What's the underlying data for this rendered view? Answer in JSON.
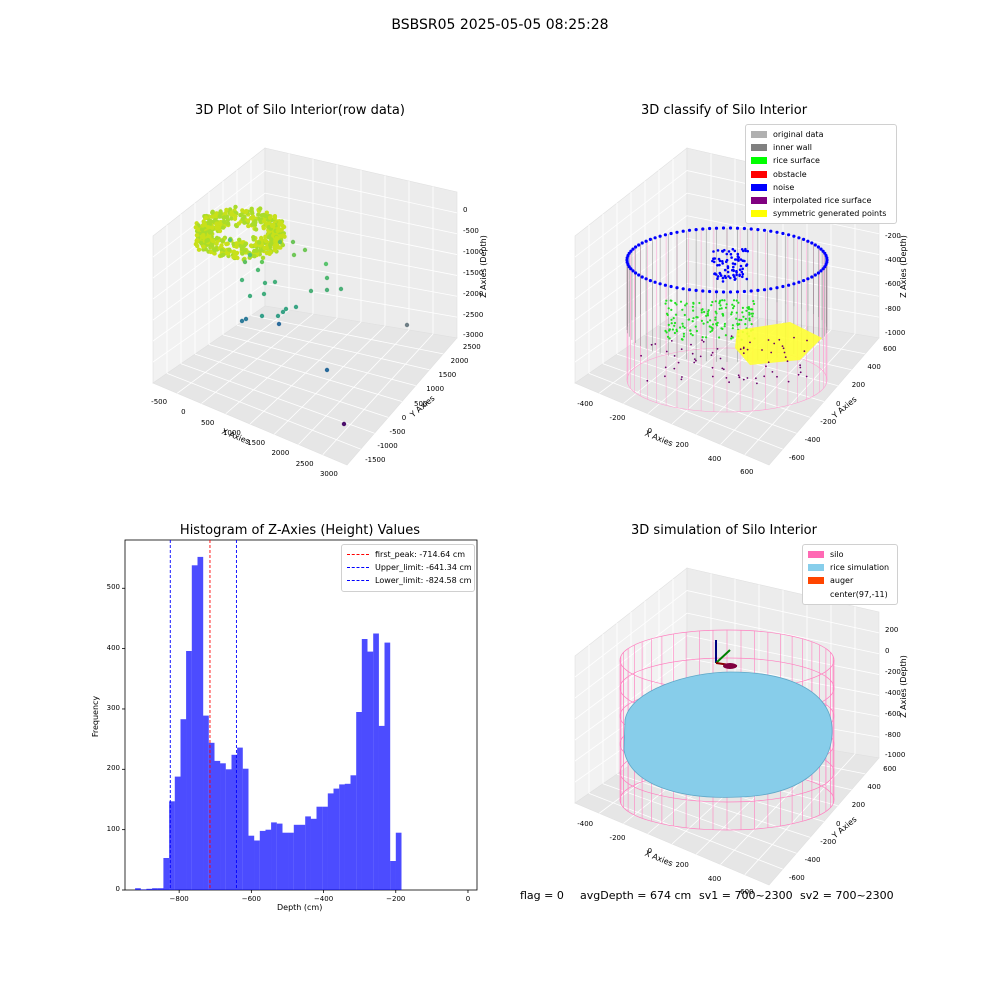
{
  "figure": {
    "suptitle": "BSBSR05 2025-05-05 08:25:28",
    "footer": {
      "flag": "flag = 0",
      "avg_depth": "avgDepth = 674 cm",
      "sv1": "sv1 = 700~2300",
      "sv2": "sv2 = 700~2300"
    }
  },
  "panels": {
    "raw": {
      "title": "3D Plot of Silo Interior(row data)",
      "xlabel": "X Axies",
      "ylabel": "Y Axies",
      "zlabel": "Z Axies (Depth)",
      "xticks": [
        "-500",
        "0",
        "500",
        "1000",
        "1500",
        "2000",
        "2500",
        "3000"
      ],
      "yticks": [
        "2500",
        "2000",
        "1500",
        "1000",
        "500",
        "0",
        "-500",
        "-1000",
        "-1500"
      ],
      "zticks": [
        "0",
        "-500",
        "-1000",
        "-1500",
        "-2000",
        "-2500",
        "-3000"
      ]
    },
    "classify": {
      "title": "3D classify of Silo Interior",
      "xlabel": "X Axies",
      "ylabel": "Y Axies",
      "zlabel": "Z Axies (Depth)",
      "xticks": [
        "-400",
        "-200",
        "0",
        "200",
        "400",
        "600"
      ],
      "yticks": [
        "600",
        "400",
        "200",
        "0",
        "-200",
        "-400",
        "-600"
      ],
      "zticks": [
        "0",
        "-200",
        "-400",
        "-600",
        "-800",
        "-1000"
      ],
      "legend": [
        {
          "label": "original data",
          "color": "#b0b0b0"
        },
        {
          "label": "inner wall",
          "color": "#808080"
        },
        {
          "label": "rice surface",
          "color": "#00ff00"
        },
        {
          "label": "obstacle",
          "color": "#ff0000"
        },
        {
          "label": "noise",
          "color": "#0000ff"
        },
        {
          "label": "interpolated rice surface",
          "color": "#800080"
        },
        {
          "label": "symmetric generated points",
          "color": "#ffff00"
        }
      ]
    },
    "simulation": {
      "title": "3D simulation of Silo Interior",
      "xlabel": "X Axies",
      "ylabel": "Y Axies",
      "zlabel": "Z Axies (Depth)",
      "xticks": [
        "-400",
        "-200",
        "0",
        "200",
        "400",
        "600"
      ],
      "yticks": [
        "600",
        "400",
        "200",
        "0",
        "-200",
        "-400",
        "-600"
      ],
      "zticks": [
        "200",
        "0",
        "-200",
        "-400",
        "-600",
        "-800",
        "-1000"
      ],
      "legend": [
        {
          "label": "silo",
          "color": "#ff69b4"
        },
        {
          "label": "rice simulation",
          "color": "#87ceeb"
        },
        {
          "label": "auger",
          "color": "#ff4500"
        },
        {
          "label": "center(97,-11)",
          "color": "#ffffff"
        }
      ]
    }
  },
  "chart_data": [
    {
      "type": "bar",
      "title": "Histogram of Z-Axies (Height) Values",
      "xlabel": "Depth (cm)",
      "ylabel": "Frequency",
      "xlim": [
        -950,
        25
      ],
      "ylim": [
        0,
        580
      ],
      "xticks": [
        -800,
        -600,
        -400,
        -200,
        0
      ],
      "yticks": [
        0,
        100,
        200,
        300,
        400,
        500
      ],
      "bar_color": "#0000ff",
      "bin_width": 15.7,
      "bin_start": -922,
      "values": [
        3,
        1,
        2,
        3,
        3,
        53,
        147,
        188,
        283,
        396,
        538,
        552,
        289,
        244,
        214,
        210,
        200,
        224,
        236,
        201,
        90,
        82,
        98,
        100,
        112,
        110,
        95,
        95,
        108,
        108,
        122,
        118,
        138,
        138,
        160,
        168,
        175,
        176,
        190,
        295,
        416,
        395,
        425,
        272,
        410,
        48,
        95
      ],
      "vlines": [
        {
          "label": "first_peak: -714.64 cm",
          "x": -714.64,
          "color": "#ff0000"
        },
        {
          "label": "Upper_limit: -641.34 cm",
          "x": -641.34,
          "color": "#0000ff"
        },
        {
          "label": "Lower_limit: -824.58 cm",
          "x": -824.58,
          "color": "#0000ff"
        }
      ],
      "legend_position": "top-right"
    }
  ]
}
